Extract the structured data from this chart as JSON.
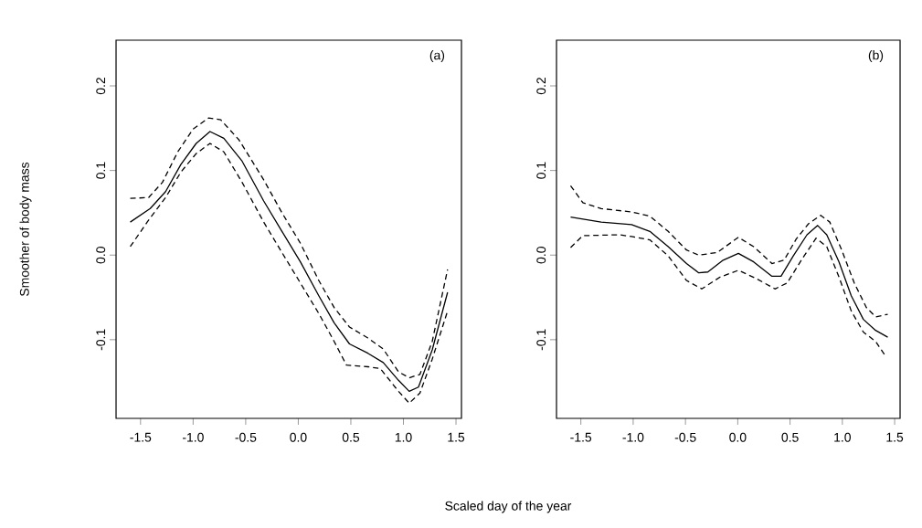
{
  "chart_data": [
    {
      "type": "line",
      "ylabel": "Smoother of body mass",
      "xlabel": "Scaled day of the year",
      "annotations": [
        "(a)"
      ],
      "xlim": [
        -1.733,
        1.552
      ],
      "ylim": [
        -0.193,
        0.254
      ],
      "xticks": [
        {
          "value": -1.5,
          "label": "-1.5"
        },
        {
          "value": -1.0,
          "label": "-1.0"
        },
        {
          "value": -0.5,
          "label": "-0.5"
        },
        {
          "value": 0,
          "label": "0.0"
        },
        {
          "value": 0.5,
          "label": "0.5"
        },
        {
          "value": 1.0,
          "label": "1.0"
        },
        {
          "value": 1.5,
          "label": "1.5"
        }
      ],
      "yticks": [
        {
          "value": -0.1,
          "label": "-0.1"
        },
        {
          "value": 0,
          "label": "0.0"
        },
        {
          "value": 0.1,
          "label": "0.1"
        },
        {
          "value": 0.2,
          "label": "0.2"
        }
      ],
      "marker": "none",
      "series": [
        {
          "color": "#000000",
          "line_style": "solid",
          "x": [
            -1.598,
            -1.408,
            -1.262,
            -1.117,
            -0.971,
            -0.84,
            -0.708,
            -0.534,
            -0.329,
            -0.155,
            0.02,
            0.195,
            0.341,
            0.487,
            0.662,
            0.808,
            0.953,
            1.055,
            1.143,
            1.274,
            1.42
          ],
          "values": [
            0.039,
            0.055,
            0.075,
            0.107,
            0.132,
            0.146,
            0.138,
            0.111,
            0.064,
            0.028,
            -0.008,
            -0.048,
            -0.08,
            -0.105,
            -0.116,
            -0.127,
            -0.148,
            -0.161,
            -0.156,
            -0.112,
            -0.044
          ]
        },
        {
          "color": "#000000",
          "line_style": "dashed",
          "x": [
            -1.598,
            -1.423,
            -1.292,
            -1.146,
            -1.0,
            -0.854,
            -0.738,
            -0.563,
            -0.329,
            -0.155,
            0.02,
            0.195,
            0.341,
            0.487,
            0.662,
            0.808,
            0.953,
            1.055,
            1.157,
            1.274,
            1.42
          ],
          "values": [
            0.067,
            0.068,
            0.086,
            0.122,
            0.149,
            0.162,
            0.16,
            0.136,
            0.089,
            0.05,
            0.014,
            -0.03,
            -0.062,
            -0.085,
            -0.098,
            -0.111,
            -0.138,
            -0.145,
            -0.141,
            -0.102,
            -0.017
          ]
        },
        {
          "color": "#000000",
          "line_style": "dashed",
          "x": [
            -1.598,
            -1.437,
            -1.262,
            -1.117,
            -0.971,
            -0.84,
            -0.708,
            -0.534,
            -0.329,
            -0.155,
            0.02,
            0.195,
            0.341,
            0.458,
            0.662,
            0.779,
            0.953,
            1.055,
            1.157,
            1.274,
            1.42
          ],
          "values": [
            0.01,
            0.039,
            0.068,
            0.098,
            0.12,
            0.132,
            0.122,
            0.086,
            0.039,
            0.003,
            -0.033,
            -0.069,
            -0.102,
            -0.13,
            -0.132,
            -0.134,
            -0.161,
            -0.175,
            -0.163,
            -0.123,
            -0.066
          ]
        }
      ]
    },
    {
      "type": "line",
      "annotations": [
        "(b)"
      ],
      "xlim": [
        -1.733,
        1.552
      ],
      "ylim": [
        -0.193,
        0.254
      ],
      "xticks": [
        {
          "value": -1.5,
          "label": "-1.5"
        },
        {
          "value": -1.0,
          "label": "-1.0"
        },
        {
          "value": -0.5,
          "label": "-0.5"
        },
        {
          "value": 0,
          "label": "0.0"
        },
        {
          "value": 0.5,
          "label": "0.5"
        },
        {
          "value": 1.0,
          "label": "1.0"
        },
        {
          "value": 1.5,
          "label": "1.5"
        }
      ],
      "yticks": [
        {
          "value": -0.1,
          "label": "-0.1"
        },
        {
          "value": 0,
          "label": "0.0"
        },
        {
          "value": 0.1,
          "label": "0.1"
        },
        {
          "value": 0.2,
          "label": "0.2"
        }
      ],
      "marker": "none",
      "series": [
        {
          "color": "#000000",
          "line_style": "solid",
          "x": [
            -1.598,
            -1.306,
            -1.015,
            -0.84,
            -0.665,
            -0.49,
            -0.373,
            -0.286,
            -0.14,
            0.006,
            0.152,
            0.327,
            0.414,
            0.531,
            0.662,
            0.764,
            0.851,
            0.968,
            1.085,
            1.201,
            1.318,
            1.434
          ],
          "values": [
            0.045,
            0.039,
            0.036,
            0.028,
            0.01,
            -0.01,
            -0.021,
            -0.02,
            -0.006,
            0.002,
            -0.008,
            -0.025,
            -0.025,
            -0.001,
            0.024,
            0.035,
            0.024,
            -0.008,
            -0.048,
            -0.076,
            -0.089,
            -0.097
          ]
        },
        {
          "color": "#000000",
          "line_style": "dashed",
          "x": [
            -1.598,
            -1.481,
            -1.306,
            -1.015,
            -0.84,
            -0.665,
            -0.49,
            -0.373,
            -0.198,
            0.006,
            0.152,
            0.327,
            0.443,
            0.559,
            0.676,
            0.793,
            0.88,
            0.997,
            1.114,
            1.23,
            1.318,
            1.434
          ],
          "values": [
            0.082,
            0.062,
            0.055,
            0.051,
            0.046,
            0.028,
            0.006,
            0.0,
            0.003,
            0.021,
            0.01,
            -0.01,
            -0.006,
            0.019,
            0.037,
            0.047,
            0.039,
            0.005,
            -0.033,
            -0.062,
            -0.073,
            -0.07
          ]
        },
        {
          "color": "#000000",
          "line_style": "dashed",
          "x": [
            -1.598,
            -1.481,
            -1.131,
            -1.015,
            -0.84,
            -0.665,
            -0.49,
            -0.344,
            -0.169,
            0.006,
            0.181,
            0.356,
            0.472,
            0.618,
            0.749,
            0.851,
            0.968,
            1.085,
            1.201,
            1.318,
            1.405
          ],
          "values": [
            0.009,
            0.023,
            0.024,
            0.022,
            0.018,
            -0.001,
            -0.03,
            -0.04,
            -0.026,
            -0.018,
            -0.028,
            -0.04,
            -0.033,
            -0.004,
            0.02,
            0.01,
            -0.026,
            -0.066,
            -0.091,
            -0.102,
            -0.118
          ]
        }
      ]
    }
  ]
}
